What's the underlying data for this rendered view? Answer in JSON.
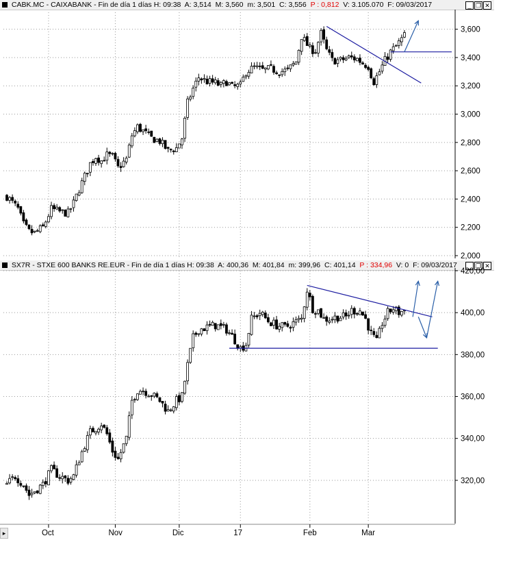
{
  "top_panel": {
    "symbol": "CABK.MC - CAIXABANK",
    "period": "Fin de día 1 días",
    "h": "H: 09:38",
    "a": "A: 3,514",
    "m": "M: 3,560",
    "min": "m: 3,501",
    "c": "C: 3,556",
    "p": "P : 0,812",
    "v": "V: 3.105.070",
    "f": "F: 09/03/2017"
  },
  "bottom_panel": {
    "symbol": "SX7R - STXE 600 BANKS RE.EUR",
    "period": "Fin de día 1 días",
    "h": "H: 09:38",
    "a": "A: 400,36",
    "m": "M: 401,84",
    "min": "m: 399,96",
    "c": "C: 401,14",
    "p": "P : 334,96",
    "v": "V: 0",
    "f": "F: 09/03/2017"
  },
  "window_buttons": {
    "minimize": "_",
    "restore": "❐",
    "close": "✕"
  },
  "scroll_glyph": "▸",
  "colors": {
    "trendline": "#1a1aa0",
    "arrow": "#2a5fa8",
    "candle": "#000000",
    "grid": "#999999"
  },
  "chart_data": [
    {
      "type": "candlestick",
      "title": "CABK.MC - CAIXABANK",
      "ylim": [
        2.0,
        3.7
      ],
      "yticks": [
        "2,000",
        "2,200",
        "2,400",
        "2,600",
        "2,800",
        "3,000",
        "3,200",
        "3,400",
        "3,600"
      ],
      "ytick_values": [
        2.0,
        2.2,
        2.4,
        2.6,
        2.8,
        3.0,
        3.2,
        3.4,
        3.6
      ],
      "x_days": 160,
      "grid": "dotted",
      "close_path": [
        [
          0,
          2.42
        ],
        [
          4,
          2.33
        ],
        [
          6,
          2.22
        ],
        [
          8,
          2.17
        ],
        [
          10,
          2.16
        ],
        [
          13,
          2.2
        ],
        [
          16,
          2.33
        ],
        [
          19,
          2.31
        ],
        [
          22,
          2.3
        ],
        [
          24,
          2.37
        ],
        [
          26,
          2.47
        ],
        [
          28,
          2.56
        ],
        [
          30,
          2.65
        ],
        [
          32,
          2.7
        ],
        [
          34,
          2.67
        ],
        [
          36,
          2.71
        ],
        [
          38,
          2.7
        ],
        [
          40,
          2.62
        ],
        [
          43,
          2.68
        ],
        [
          45,
          2.85
        ],
        [
          47,
          2.91
        ],
        [
          49,
          2.88
        ],
        [
          52,
          2.83
        ],
        [
          55,
          2.81
        ],
        [
          58,
          2.74
        ],
        [
          61,
          2.76
        ],
        [
          63,
          2.83
        ],
        [
          65,
          3.08
        ],
        [
          67,
          3.18
        ],
        [
          69,
          3.26
        ],
        [
          72,
          3.23
        ],
        [
          75,
          3.22
        ],
        [
          77,
          3.2
        ],
        [
          79,
          3.23
        ],
        [
          81,
          3.19
        ],
        [
          84,
          3.2
        ],
        [
          86,
          3.3
        ],
        [
          89,
          3.33
        ],
        [
          92,
          3.31
        ],
        [
          95,
          3.32
        ],
        [
          98,
          3.3
        ],
        [
          101,
          3.31
        ],
        [
          104,
          3.37
        ],
        [
          106,
          3.55
        ],
        [
          109,
          3.46
        ],
        [
          111,
          3.45
        ],
        [
          113,
          3.57
        ],
        [
          115,
          3.45
        ],
        [
          117,
          3.38
        ],
        [
          120,
          3.38
        ],
        [
          123,
          3.4
        ],
        [
          126,
          3.39
        ],
        [
          128,
          3.36
        ],
        [
          130,
          3.34
        ],
        [
          131,
          3.28
        ],
        [
          132,
          3.23
        ],
        [
          134,
          3.3
        ],
        [
          136,
          3.38
        ],
        [
          138,
          3.44
        ],
        [
          140,
          3.48
        ],
        [
          142,
          3.53
        ],
        [
          143,
          3.556
        ]
      ],
      "trendlines": [
        {
          "kind": "resistance",
          "from": [
            115,
            3.62
          ],
          "to": [
            149,
            3.22
          ]
        },
        {
          "kind": "horizontal",
          "from": [
            138,
            3.44
          ],
          "to": [
            160,
            3.44
          ]
        }
      ],
      "projection_arrows": [
        {
          "from": [
            143,
            3.44
          ],
          "to": [
            148,
            3.66
          ]
        }
      ]
    },
    {
      "type": "candlestick",
      "title": "SX7R - STXE 600 BANKS RE.EUR",
      "ylim": [
        300,
        420
      ],
      "yticks": [
        "320,00",
        "340,00",
        "360,00",
        "380,00",
        "400,00",
        "420,00"
      ],
      "ytick_values": [
        320,
        340,
        360,
        380,
        400,
        420
      ],
      "x_days": 160,
      "grid": "dotted",
      "close_path": [
        [
          0,
          318
        ],
        [
          3,
          322
        ],
        [
          6,
          318
        ],
        [
          8,
          313
        ],
        [
          10,
          315
        ],
        [
          13,
          318
        ],
        [
          16,
          325
        ],
        [
          19,
          322
        ],
        [
          22,
          320
        ],
        [
          24,
          322
        ],
        [
          26,
          330
        ],
        [
          28,
          337
        ],
        [
          30,
          343
        ],
        [
          32,
          345
        ],
        [
          34,
          347
        ],
        [
          36,
          342
        ],
        [
          38,
          334
        ],
        [
          40,
          330
        ],
        [
          43,
          340
        ],
        [
          45,
          358
        ],
        [
          47,
          363
        ],
        [
          49,
          363
        ],
        [
          52,
          361
        ],
        [
          55,
          358
        ],
        [
          58,
          353
        ],
        [
          61,
          358
        ],
        [
          63,
          360
        ],
        [
          65,
          375
        ],
        [
          67,
          388
        ],
        [
          69,
          392
        ],
        [
          72,
          393
        ],
        [
          75,
          394
        ],
        [
          77,
          393
        ],
        [
          79,
          392
        ],
        [
          82,
          387
        ],
        [
          84,
          383
        ],
        [
          86,
          385
        ],
        [
          88,
          397
        ],
        [
          91,
          400
        ],
        [
          94,
          396
        ],
        [
          97,
          394
        ],
        [
          100,
          393
        ],
        [
          103,
          395
        ],
        [
          106,
          397
        ],
        [
          108,
          411
        ],
        [
          110,
          402
        ],
        [
          112,
          401
        ],
        [
          114,
          397
        ],
        [
          116,
          397
        ],
        [
          119,
          398
        ],
        [
          122,
          398
        ],
        [
          124,
          401
        ],
        [
          127,
          401
        ],
        [
          129,
          397
        ],
        [
          131,
          390
        ],
        [
          133,
          386
        ],
        [
          135,
          395
        ],
        [
          137,
          400
        ],
        [
          139,
          402
        ],
        [
          141,
          400
        ],
        [
          143,
          401.14
        ]
      ],
      "trendlines": [
        {
          "kind": "resistance",
          "from": [
            108,
            413
          ],
          "to": [
            153,
            398
          ]
        },
        {
          "kind": "support",
          "from": [
            80,
            383
          ],
          "to": [
            155,
            383
          ]
        }
      ],
      "projection_arrows": [
        {
          "from": [
            146,
            398
          ],
          "to": [
            148,
            415
          ]
        },
        {
          "from": [
            148,
            398
          ],
          "to": [
            151,
            388
          ]
        },
        {
          "from": [
            151,
            388
          ],
          "to": [
            155,
            415
          ]
        }
      ]
    }
  ],
  "x_axis_labels": [
    {
      "label": "Oct",
      "day": 15
    },
    {
      "label": "Nov",
      "day": 39
    },
    {
      "label": "Dic",
      "day": 62
    },
    {
      "label": "17",
      "day": 84
    },
    {
      "label": "Feb",
      "day": 109
    },
    {
      "label": "Mar",
      "day": 130
    }
  ]
}
